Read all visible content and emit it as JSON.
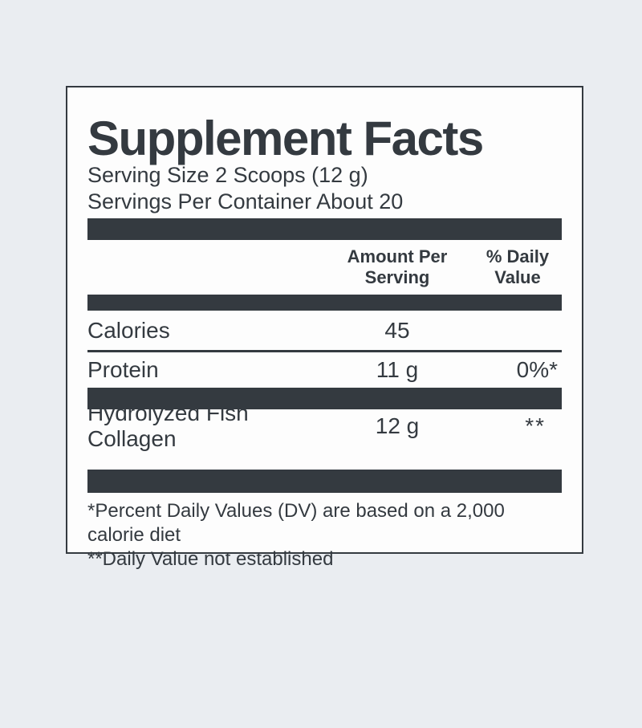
{
  "colors": {
    "ink": "#343a40",
    "card_background": "#fdfdfd",
    "page_background": "#eaedf1"
  },
  "label": {
    "title": "Supplement Facts",
    "serving_size": "Serving Size 2 Scoops (12 g)",
    "servings_per_container": "Servings Per Container About 20",
    "columns": {
      "amount_header": [
        "Amount Per",
        "Serving"
      ],
      "dv_header": [
        "% Daily",
        "Value"
      ]
    },
    "rows": [
      {
        "name": "Calories",
        "amount": "45",
        "dv": ""
      },
      {
        "name": "Protein",
        "amount": "11 g",
        "dv": "0%*"
      }
    ],
    "ingredients": [
      {
        "name": "Hydrolyzed Fish Collagen",
        "amount": "12 g",
        "dv": "**"
      }
    ],
    "footnotes": [
      "*Percent Daily Values (DV) are based on a 2,000 calorie diet",
      "**Daily Value not established"
    ]
  }
}
